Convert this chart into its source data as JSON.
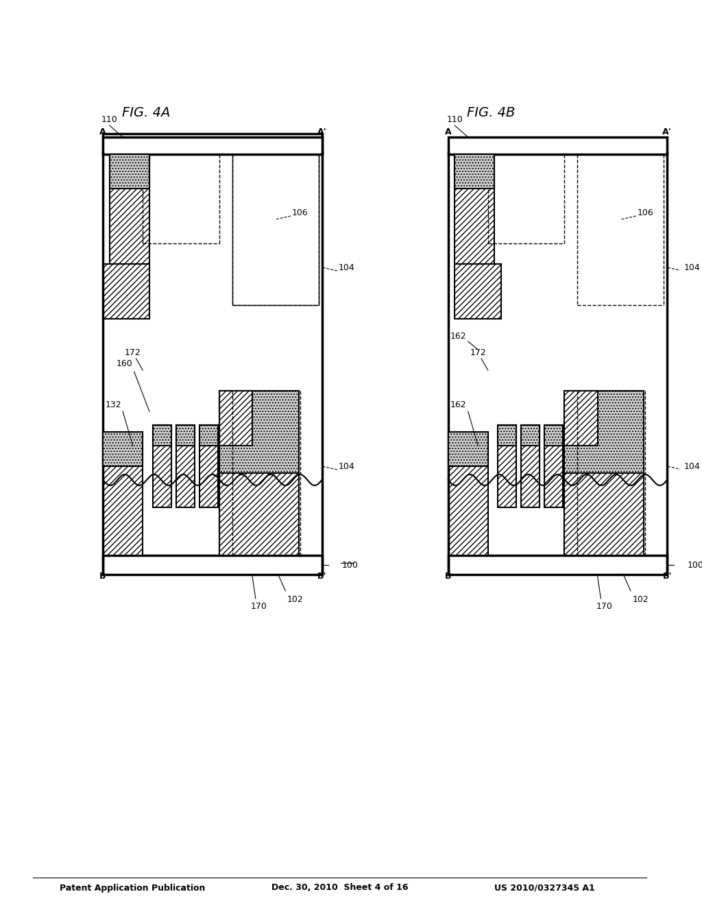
{
  "title_left": "Patent Application Publication",
  "title_mid": "Dec. 30, 2010  Sheet 4 of 16",
  "title_right": "US 2010/0327345 A1",
  "fig_a_label": "FIG. 4A",
  "fig_b_label": "FIG. 4B",
  "background": "#ffffff",
  "hatch_diagonal": "////",
  "hatch_dot": "....",
  "line_color": "#000000",
  "lw": 1.5,
  "lw_thick": 2.5
}
